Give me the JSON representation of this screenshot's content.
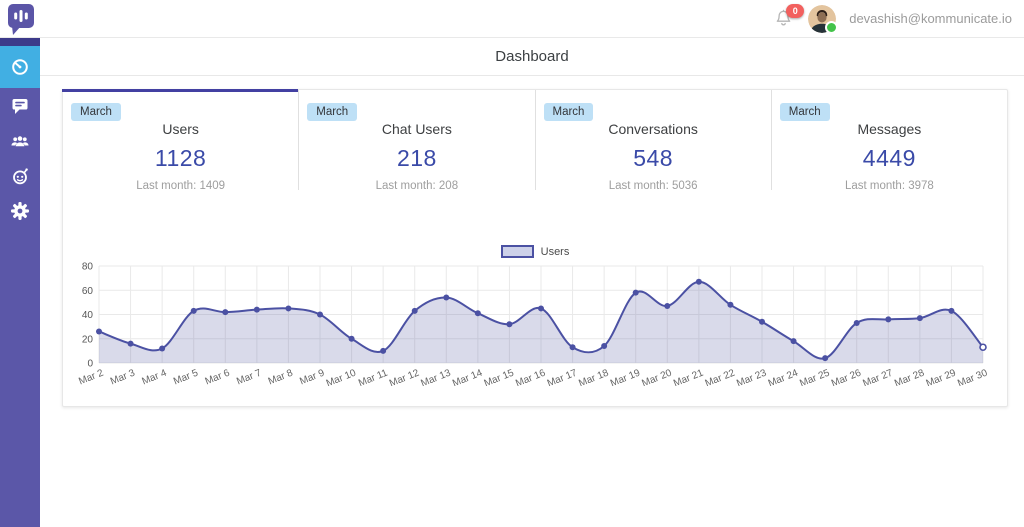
{
  "header": {
    "notification_count": "0",
    "user_email": "devashish@kommunicate.io"
  },
  "sidebar": {
    "items": [
      {
        "icon": "dashboard-gauge-icon",
        "active": true
      },
      {
        "icon": "conversations-chat-icon",
        "active": false
      },
      {
        "icon": "users-people-icon",
        "active": false
      },
      {
        "icon": "bot-icon",
        "active": false
      },
      {
        "icon": "settings-gear-icon",
        "active": false
      }
    ]
  },
  "page": {
    "title": "Dashboard"
  },
  "stats": [
    {
      "period": "March",
      "label": "Users",
      "value": "1128",
      "last_month": "Last month: 1409",
      "selected": true
    },
    {
      "period": "March",
      "label": "Chat Users",
      "value": "218",
      "last_month": "Last month: 208",
      "selected": false
    },
    {
      "period": "March",
      "label": "Conversations",
      "value": "548",
      "last_month": "Last month: 5036",
      "selected": false
    },
    {
      "period": "March",
      "label": "Messages",
      "value": "4449",
      "last_month": "Last month: 3978",
      "selected": false
    }
  ],
  "chart_data": {
    "type": "area",
    "title": "",
    "x": [
      "Mar 2",
      "Mar 3",
      "Mar 4",
      "Mar 5",
      "Mar 6",
      "Mar 7",
      "Mar 8",
      "Mar 9",
      "Mar 10",
      "Mar 11",
      "Mar 12",
      "Mar 13",
      "Mar 14",
      "Mar 15",
      "Mar 16",
      "Mar 17",
      "Mar 18",
      "Mar 19",
      "Mar 20",
      "Mar 21",
      "Mar 22",
      "Mar 23",
      "Mar 24",
      "Mar 25",
      "Mar 26",
      "Mar 27",
      "Mar 28",
      "Mar 29",
      "Mar 30"
    ],
    "series": [
      {
        "name": "Users",
        "values": [
          26,
          16,
          12,
          43,
          42,
          44,
          45,
          40,
          20,
          10,
          43,
          54,
          41,
          32,
          45,
          13,
          14,
          58,
          47,
          67,
          48,
          34,
          18,
          4,
          33,
          36,
          37,
          43,
          13
        ]
      }
    ],
    "ylim": [
      0,
      80
    ],
    "yticks": [
      0,
      20,
      40,
      60,
      80
    ],
    "grid": true,
    "legend_position": "top-center",
    "line_color": "#4B51A3",
    "fill_color": "rgba(80,85,160,0.22)",
    "last_point_style": "open"
  },
  "colors": {
    "accent_indigo": "#3A4AA8",
    "selected_tab_indigo": "#4340A2",
    "sidebar_purple": "#5B57A8",
    "sidebar_top_navy": "#3C3A8A",
    "active_item_blue": "#41AFE3",
    "chip_blue_bg": "#BEE0F6",
    "badge_red": "#F2605E",
    "online_green": "#43C34A",
    "chart_line": "#4B51A3",
    "chart_fill_swatch": "#CDD1E9"
  }
}
